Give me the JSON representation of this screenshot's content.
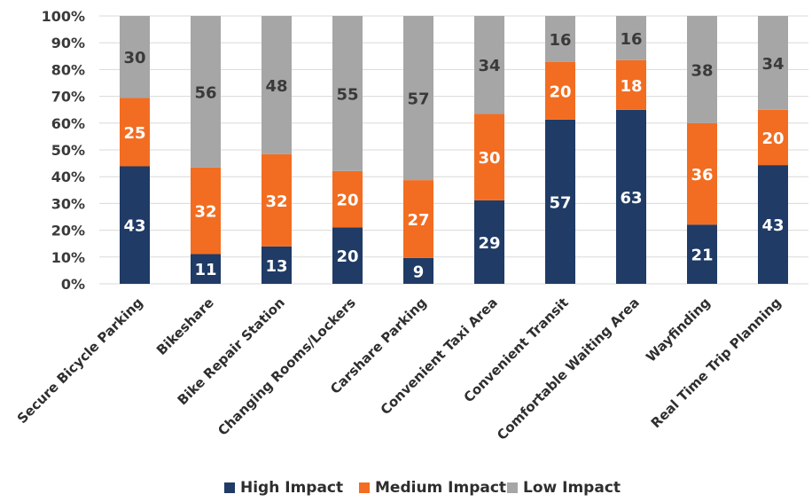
{
  "chart_data": {
    "type": "bar",
    "stacked": true,
    "percent_stacked": true,
    "categories": [
      "Secure Bicycle Parking",
      "Bikeshare",
      "Bike Repair Station",
      "Changing Rooms/Lockers",
      "Carshare Parking",
      "Convenient Taxi Area",
      "Convenient Transit",
      "Comfortable Waiting Area",
      "Wayfinding",
      "Real Time Trip Planning"
    ],
    "series": [
      {
        "name": "High Impact",
        "color": "#1f3b66",
        "label_color": "#ffffff",
        "values": [
          43,
          11,
          13,
          20,
          9,
          29,
          57,
          63,
          21,
          43
        ]
      },
      {
        "name": "Medium Impact",
        "color": "#f26d21",
        "label_color": "#ffffff",
        "values": [
          25,
          32,
          32,
          20,
          27,
          30,
          20,
          18,
          36,
          20
        ]
      },
      {
        "name": "Low Impact",
        "color": "#a6a6a6",
        "label_color": "#3a3a3a",
        "values": [
          30,
          56,
          48,
          55,
          57,
          34,
          16,
          16,
          38,
          34
        ]
      }
    ],
    "yticks": [
      "0%",
      "10%",
      "20%",
      "30%",
      "40%",
      "50%",
      "60%",
      "70%",
      "80%",
      "90%",
      "100%"
    ],
    "ylim": [
      0,
      100
    ],
    "grid": true,
    "legend_position": "bottom"
  }
}
